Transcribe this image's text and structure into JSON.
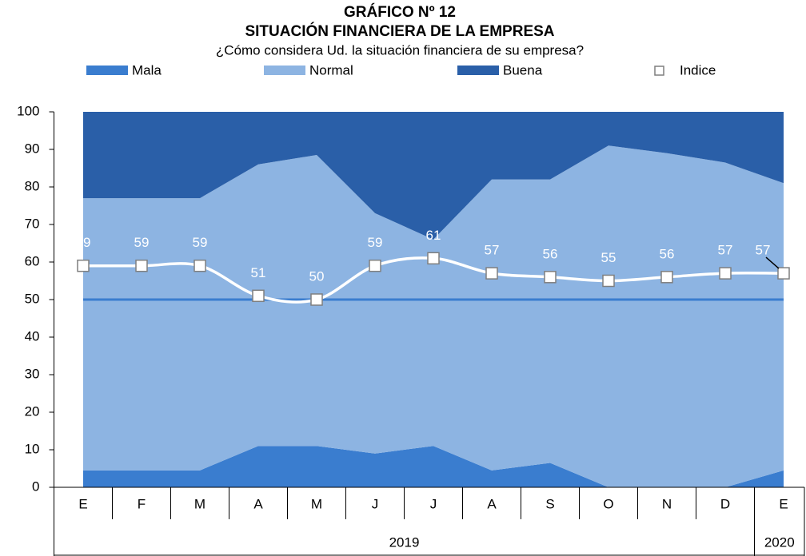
{
  "chart_data": {
    "type": "stacked_area",
    "title": [
      "GRÁFICO Nº 12",
      "SITUACIÓN FINANCIERA DE LA EMPRESA"
    ],
    "subtitle": "¿Cómo considera Ud. la situación financiera de su empresa?",
    "categories": [
      "E",
      "F",
      "M",
      "A",
      "M",
      "J",
      "J",
      "A",
      "S",
      "O",
      "N",
      "D",
      "E"
    ],
    "groups": [
      {
        "label": "2019",
        "count": 12
      },
      {
        "label": "2020",
        "count": 1
      }
    ],
    "series": [
      {
        "name": "Mala",
        "color": "#3a7dcf",
        "values": [
          4.5,
          4.5,
          4.5,
          11,
          11,
          9,
          11,
          4.5,
          6.5,
          0,
          0,
          0,
          4.5
        ]
      },
      {
        "name": "Normal",
        "color": "#8db4e2",
        "values": [
          72.5,
          72.5,
          72.5,
          75,
          77.5,
          64,
          55,
          77.5,
          75.5,
          91,
          89,
          86.5,
          76.5
        ]
      },
      {
        "name": "Buena",
        "color": "#2a5fa8",
        "values": [
          23,
          23,
          23,
          14,
          11.5,
          27,
          34,
          18,
          18,
          9,
          11,
          13.5,
          19
        ]
      }
    ],
    "line": {
      "name": "Indice",
      "color": "#ffffff",
      "values": [
        59,
        59,
        59,
        51,
        50,
        59,
        61,
        57,
        56,
        55,
        56,
        57,
        57
      ]
    },
    "reference_line": {
      "value": 50,
      "color": "#3a7dcf"
    },
    "ylim": [
      0,
      100
    ],
    "yticks": [
      0,
      10,
      20,
      30,
      40,
      50,
      60,
      70,
      80,
      90,
      100
    ],
    "legend": "top"
  }
}
